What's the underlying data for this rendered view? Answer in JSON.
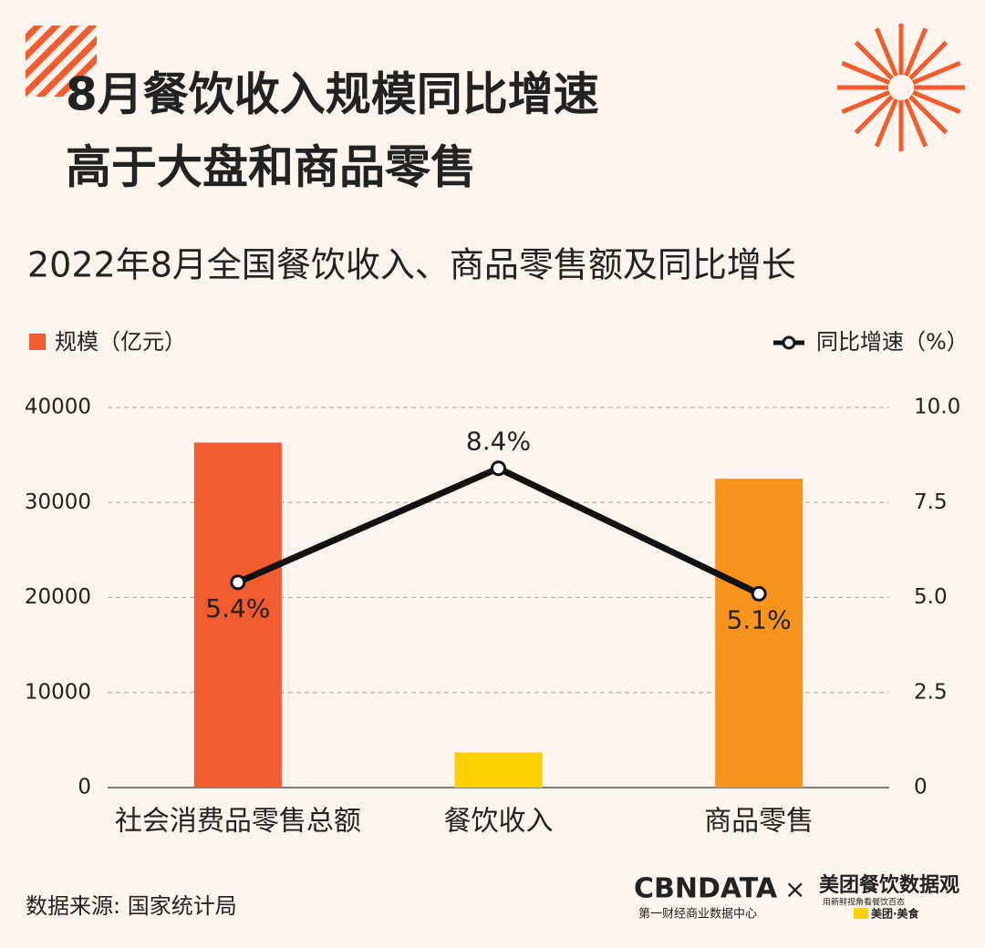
{
  "chart_data": {
    "type": "bar",
    "title_lines": [
      "8月餐饮收入规模同比增速",
      "高于大盘和商品零售"
    ],
    "subtitle": "2022年8月全国餐饮收入、商品零售额及同比增长",
    "categories": [
      "社会消费品零售总额",
      "餐饮收入",
      "商品零售"
    ],
    "series": [
      {
        "name": "规模（亿元）",
        "color": "#f25c2e",
        "colors": [
          "#f25c2e",
          "#fdd000",
          "#f7941d"
        ],
        "values": [
          36300,
          3700,
          32500
        ]
      },
      {
        "name": "同比增速（%）",
        "type": "line",
        "axis": "y2",
        "color": "#111111",
        "values": [
          5.4,
          8.4,
          5.1
        ],
        "value_labels": [
          "5.4%",
          "8.4%",
          "5.1%"
        ]
      }
    ],
    "ylim": [
      0,
      40000
    ],
    "yticks": [
      0,
      10000,
      20000,
      30000,
      40000
    ],
    "y2lim": [
      0,
      10
    ],
    "y2ticks": [
      0,
      {
        "value": 2.5,
        "label": "2.5"
      },
      {
        "value": 5,
        "label": "5.0"
      },
      {
        "value": 7.5,
        "label": "7.5"
      },
      {
        "value": 10,
        "label": "10.0"
      }
    ],
    "grid": true,
    "source": "数据来源: 国家统计局"
  },
  "branding": {
    "cbn": "CBNDATA",
    "cbn_sub": "第一财经商业数据中心",
    "times": "×",
    "meituan": "美团餐饮数据观",
    "meituan_sub": "用新鲜视角看餐饮百态",
    "meituan_tag": "美团·美食"
  }
}
